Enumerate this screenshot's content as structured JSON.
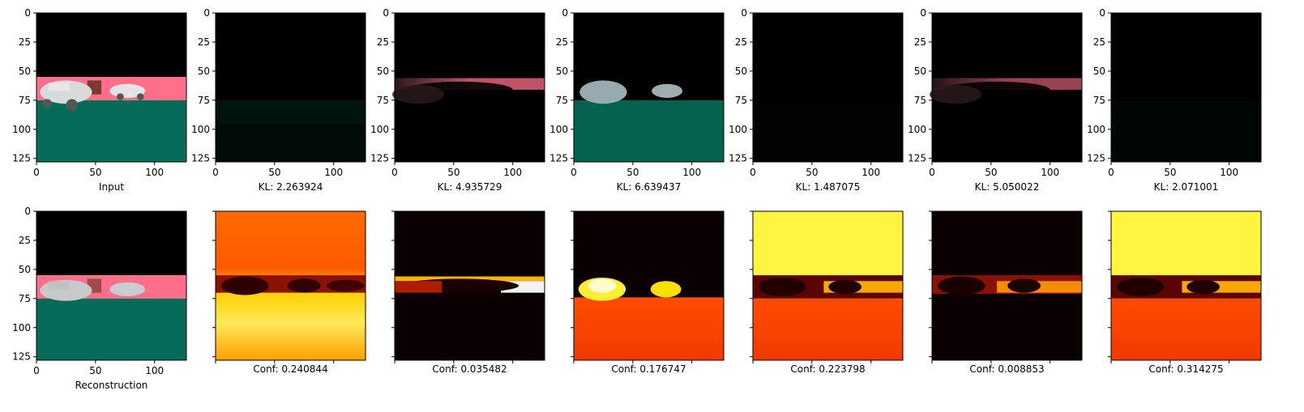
{
  "chart_data": {
    "type": "image-grid",
    "rows": 2,
    "cols": 7,
    "image_extent": [
      0,
      127
    ],
    "x_ticks": [
      0,
      50,
      100
    ],
    "y_ticks": [
      0,
      25,
      50,
      75,
      100,
      125
    ],
    "colormap": "hot",
    "top_row": [
      {
        "caption": "Input",
        "kind": "scene",
        "brightness": 1.0
      },
      {
        "caption": "KL: 2.263924",
        "kind": "ground-only",
        "brightness": 0.18
      },
      {
        "caption": "KL: 4.935729",
        "kind": "sky-band",
        "brightness": 0.75
      },
      {
        "caption": "KL: 6.639437",
        "kind": "cars-ground",
        "brightness": 0.9
      },
      {
        "caption": "KL: 1.487075",
        "kind": "dark",
        "brightness": 0.02
      },
      {
        "caption": "KL: 5.050022",
        "kind": "sky-band",
        "brightness": 0.6
      },
      {
        "caption": "KL: 2.071001",
        "kind": "dark",
        "brightness": 0.06
      }
    ],
    "bottom_row": [
      {
        "caption": "Reconstruction",
        "kind": "scene-blurry"
      },
      {
        "caption": "Conf: 0.240844",
        "kind": "heat-orange-top"
      },
      {
        "caption": "Conf: 0.035482",
        "kind": "heat-band"
      },
      {
        "caption": "Conf: 0.176747",
        "kind": "heat-cars"
      },
      {
        "caption": "Conf: 0.223798",
        "kind": "heat-yellow-top"
      },
      {
        "caption": "Conf: 0.008853",
        "kind": "heat-dark-band"
      },
      {
        "caption": "Conf: 0.314275",
        "kind": "heat-yellow-top"
      }
    ],
    "colors": {
      "sky": "#000000",
      "pink": "#ff6f8a",
      "green": "#056b59",
      "car": "#d9dadb"
    }
  }
}
